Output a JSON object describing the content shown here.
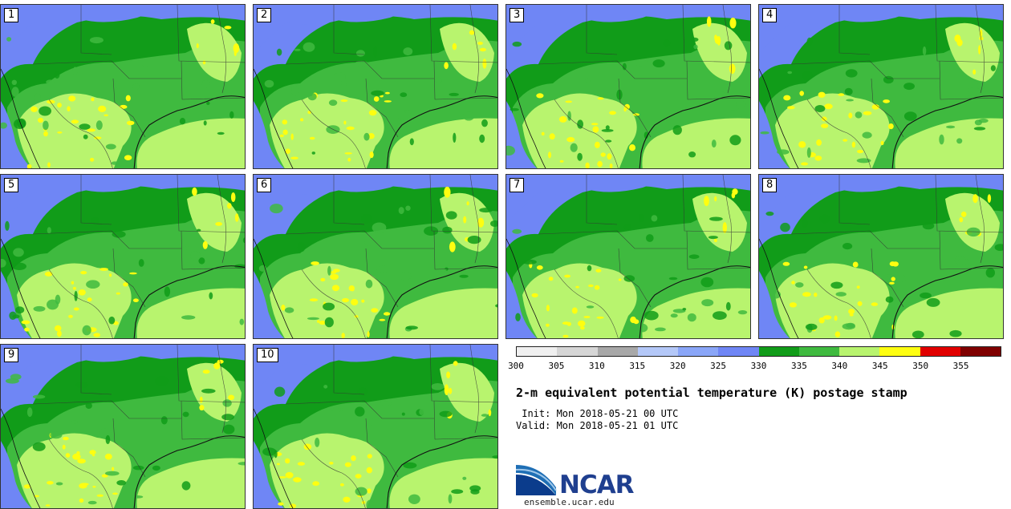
{
  "panels": [
    {
      "label": "1"
    },
    {
      "label": "2"
    },
    {
      "label": "3"
    },
    {
      "label": "4"
    },
    {
      "label": "5"
    },
    {
      "label": "6"
    },
    {
      "label": "7"
    },
    {
      "label": "8"
    },
    {
      "label": "9"
    },
    {
      "label": "10"
    }
  ],
  "colorbar": {
    "colors": [
      "#f0f0f0",
      "#d6d6d6",
      "#a8a8a8",
      "#b4c8f8",
      "#8aa6f8",
      "#6f86f5",
      "#119c19",
      "#3fba3f",
      "#b8f46e",
      "#fefe10",
      "#e10000",
      "#7f0000"
    ],
    "labels": [
      "300",
      "305",
      "310",
      "315",
      "320",
      "325",
      "330",
      "335",
      "340",
      "345",
      "350",
      "355"
    ]
  },
  "map_colors": {
    "cold": "#6f86f5",
    "dark_green": "#119c19",
    "green": "#3fba3f",
    "light_green": "#b8f46e",
    "yellow": "#fefe10",
    "red": "#e10000"
  },
  "title": "2-m equivalent potential temperature (K) postage stamp",
  "init": " Init: Mon 2018-05-21 00 UTC",
  "valid": "Valid: Mon 2018-05-21 01 UTC",
  "logo": {
    "text": "NCAR",
    "url": "ensemble.ucar.edu"
  }
}
